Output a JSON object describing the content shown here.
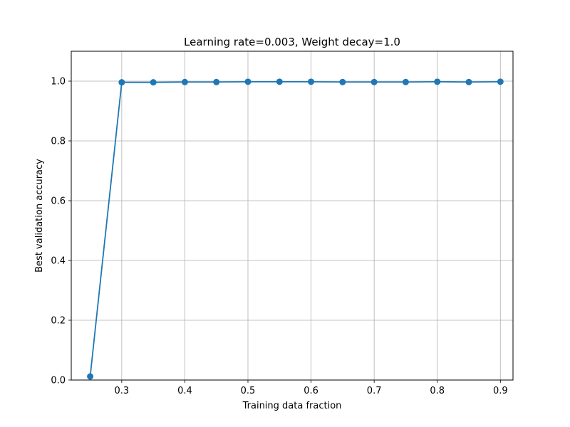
{
  "chart_data": {
    "type": "line",
    "title": "Learning rate=0.003, Weight decay=1.0",
    "xlabel": "Training data fraction",
    "ylabel": "Best validation accuracy",
    "xlim": [
      0.22,
      0.92
    ],
    "ylim": [
      0.0,
      1.1
    ],
    "x_ticks": [
      0.3,
      0.4,
      0.5,
      0.6,
      0.7,
      0.8,
      0.9
    ],
    "x_tick_labels": [
      "0.3",
      "0.4",
      "0.5",
      "0.6",
      "0.7",
      "0.8",
      "0.9"
    ],
    "y_ticks": [
      0.0,
      0.2,
      0.4,
      0.6,
      0.8,
      1.0
    ],
    "y_tick_labels": [
      "0.0",
      "0.2",
      "0.4",
      "0.6",
      "0.8",
      "1.0"
    ],
    "grid": true,
    "series": [
      {
        "color": "#1f77b4",
        "marker": "circle",
        "x": [
          0.25,
          0.3,
          0.35,
          0.4,
          0.45,
          0.5,
          0.55,
          0.6,
          0.65,
          0.7,
          0.75,
          0.8,
          0.85,
          0.9
        ],
        "y": [
          0.012,
          0.996,
          0.996,
          0.997,
          0.997,
          0.998,
          0.998,
          0.998,
          0.997,
          0.997,
          0.997,
          0.998,
          0.997,
          0.998
        ]
      }
    ]
  }
}
